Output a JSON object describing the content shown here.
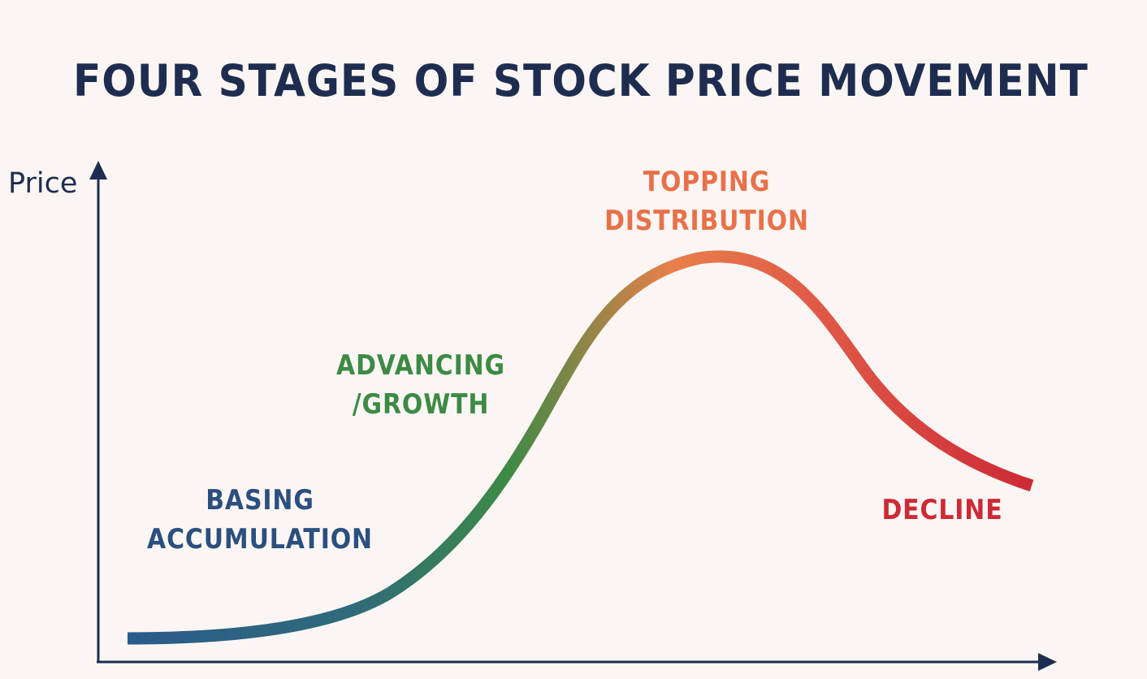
{
  "title": "FOUR STAGES OF STOCK PRICE MOVEMENT",
  "y_axis_label": "Price",
  "stages": [
    {
      "id": "basing",
      "lines": [
        "BASING",
        "ACCUMULATION"
      ],
      "color": "#2b4f7e"
    },
    {
      "id": "advancing",
      "lines": [
        "ADVANCING",
        "/GROWTH"
      ],
      "color": "#3d8a45"
    },
    {
      "id": "topping",
      "lines": [
        "TOPPING",
        "DISTRIBUTION"
      ],
      "color": "#e8714a"
    },
    {
      "id": "decline",
      "lines": [
        "DECLINE"
      ],
      "color": "#cc2a36"
    }
  ],
  "colors": {
    "background": "#fbf6f3",
    "axis": "#1e2d4f",
    "curve_gradient": [
      "#2b5a8c",
      "#3d8a45",
      "#e8804a",
      "#cc2a36"
    ]
  }
}
